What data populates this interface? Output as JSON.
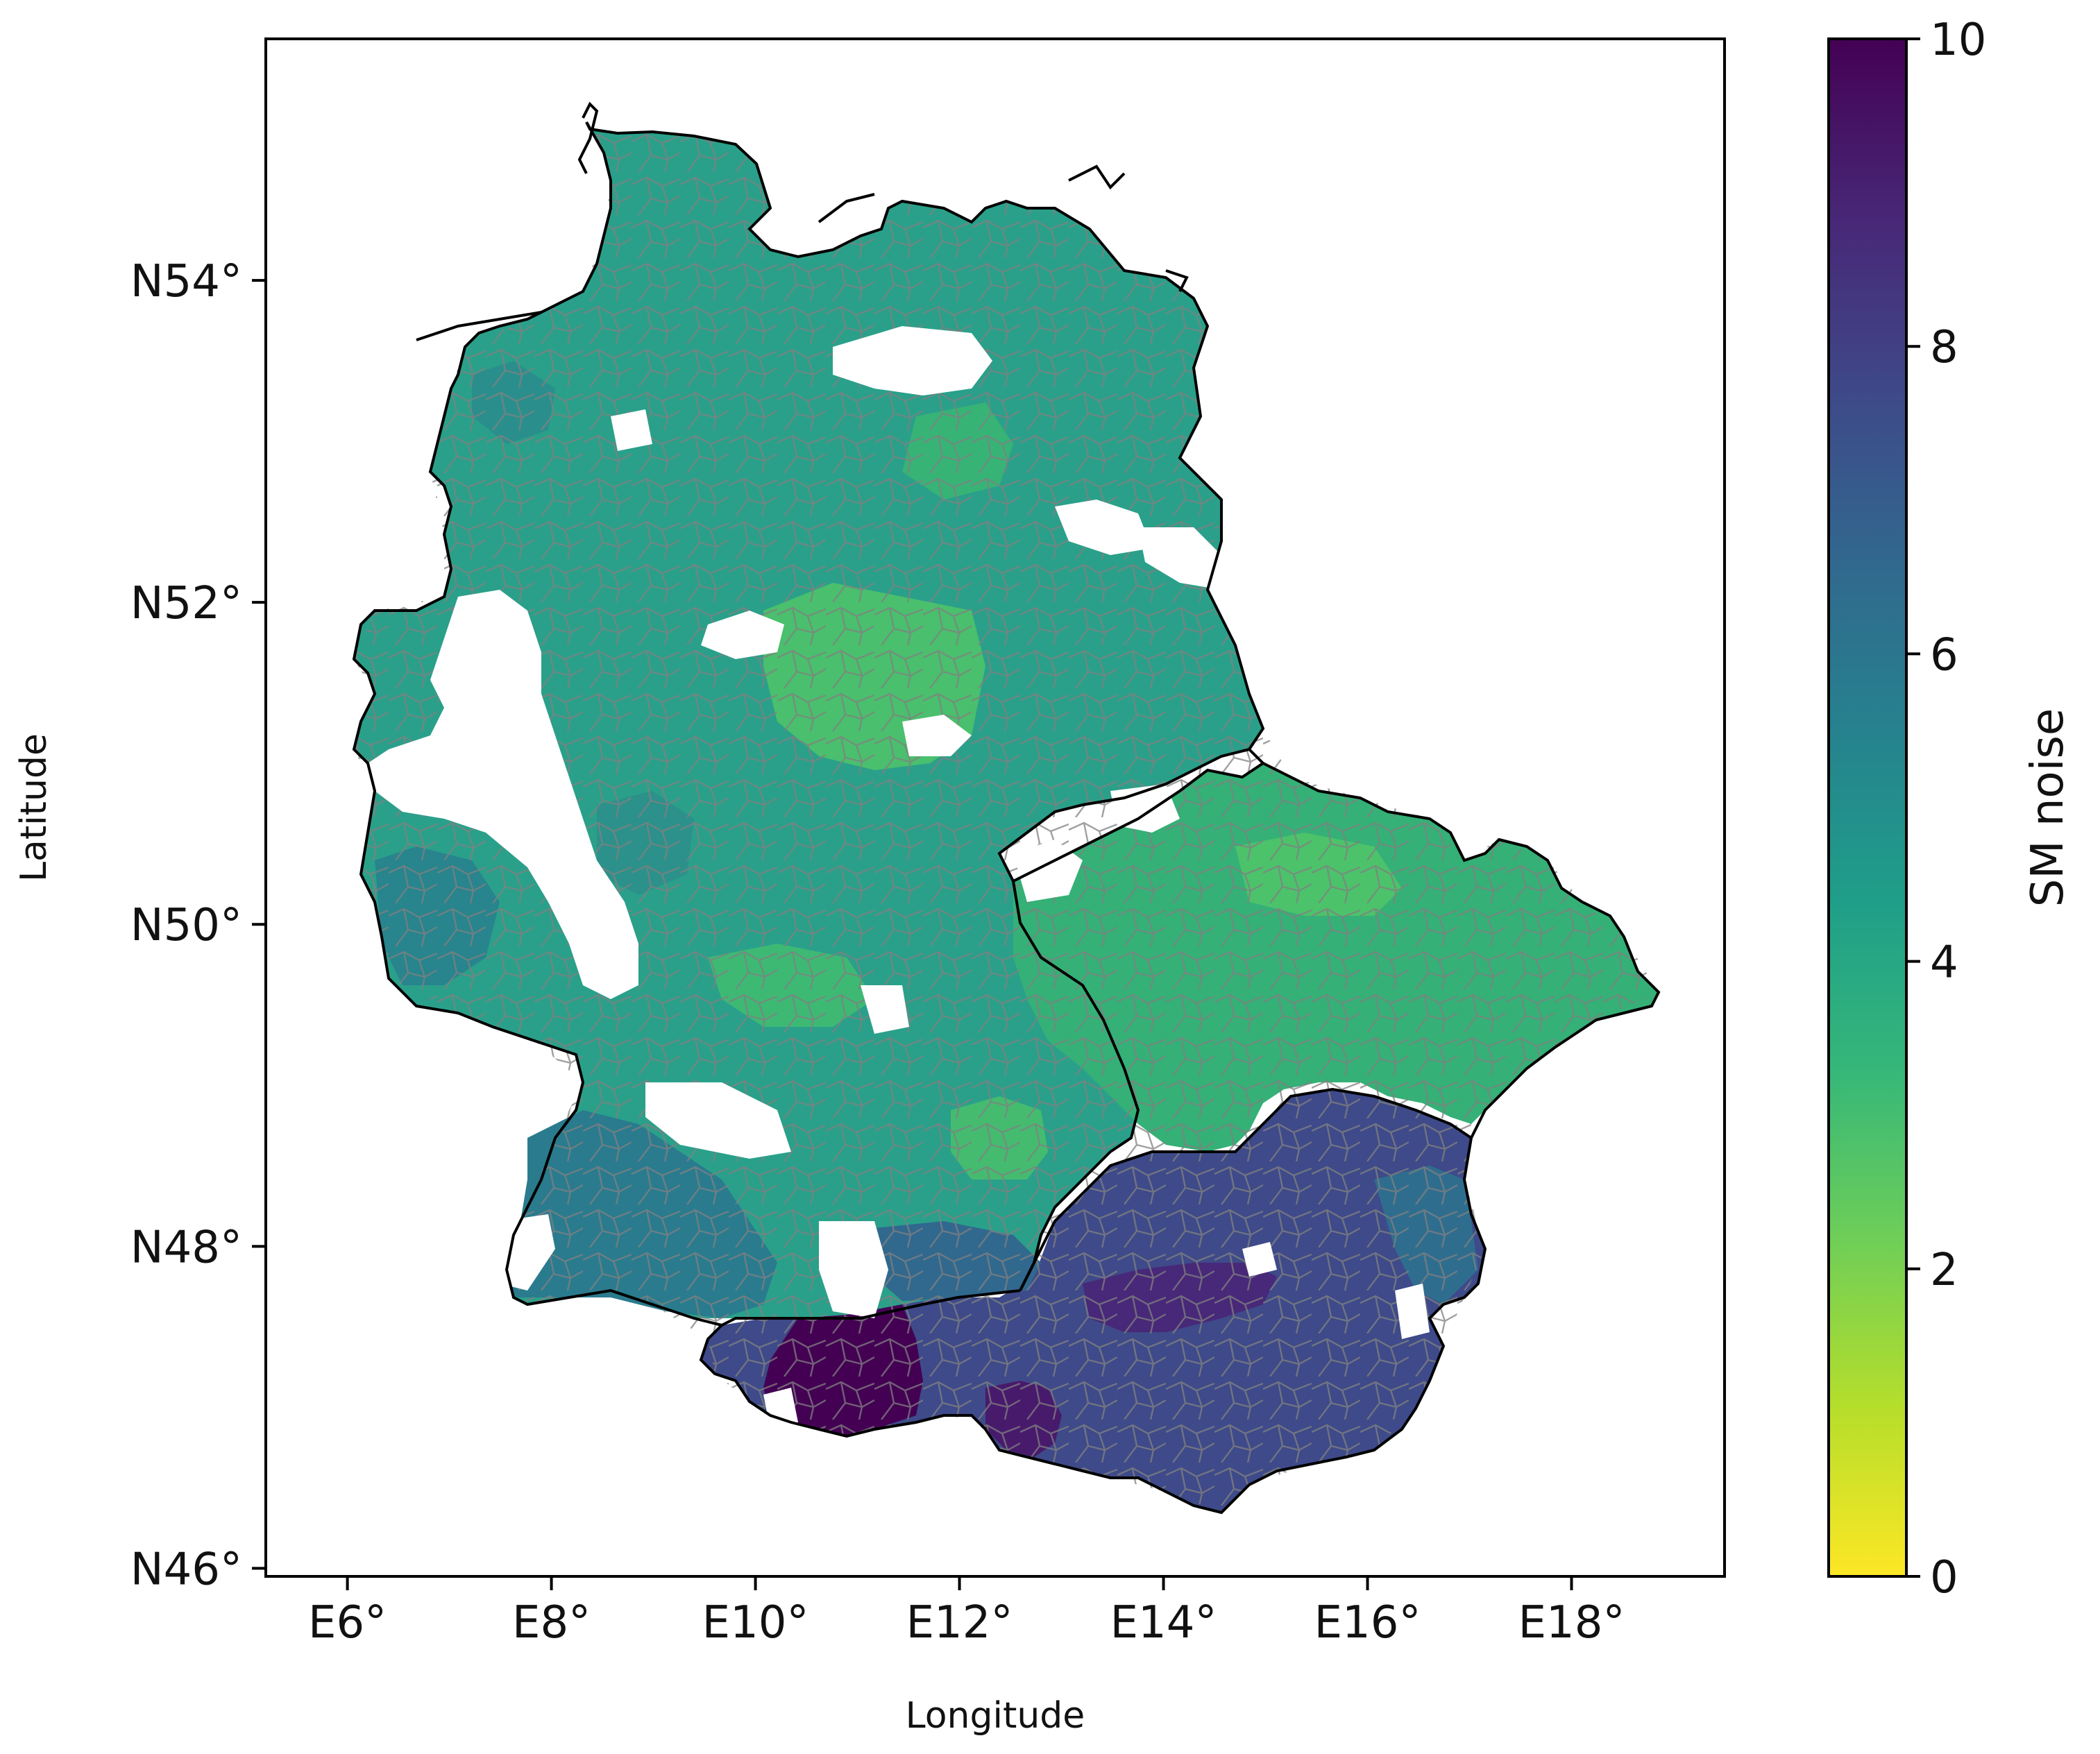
{
  "x_axis": {
    "label": "Longitude",
    "ticks": [
      "E6°",
      "E8°",
      "E10°",
      "E12°",
      "E14°",
      "E16°",
      "E18°"
    ],
    "tick_values": [
      6,
      8,
      10,
      12,
      14,
      16,
      18
    ],
    "range": [
      5.2,
      19.5
    ]
  },
  "y_axis": {
    "label": "Latitude",
    "ticks": [
      "N46°",
      "N48°",
      "N50°",
      "N52°",
      "N54°"
    ],
    "tick_values": [
      46,
      48,
      50,
      52,
      54
    ],
    "range": [
      45.95,
      55.5
    ]
  },
  "colorbar": {
    "label": "SM noise",
    "ticks": [
      "0",
      "2",
      "4",
      "6",
      "8",
      "10"
    ],
    "tick_values": [
      0,
      2,
      4,
      6,
      8,
      10
    ],
    "range": [
      0,
      10
    ],
    "colormap": "viridis_r",
    "colors": [
      "#fde725",
      "#b5de2b",
      "#6ece58",
      "#35b779",
      "#1f9e89",
      "#26828e",
      "#31688e",
      "#3e4989",
      "#482878",
      "#440154"
    ]
  },
  "map_regions": {
    "germany": "mostly 3–5, higher (~5–6) in south-west and south",
    "czechia": "mostly 3–5",
    "austria": "~7–8, up to ~10 in western Tyrol"
  }
}
